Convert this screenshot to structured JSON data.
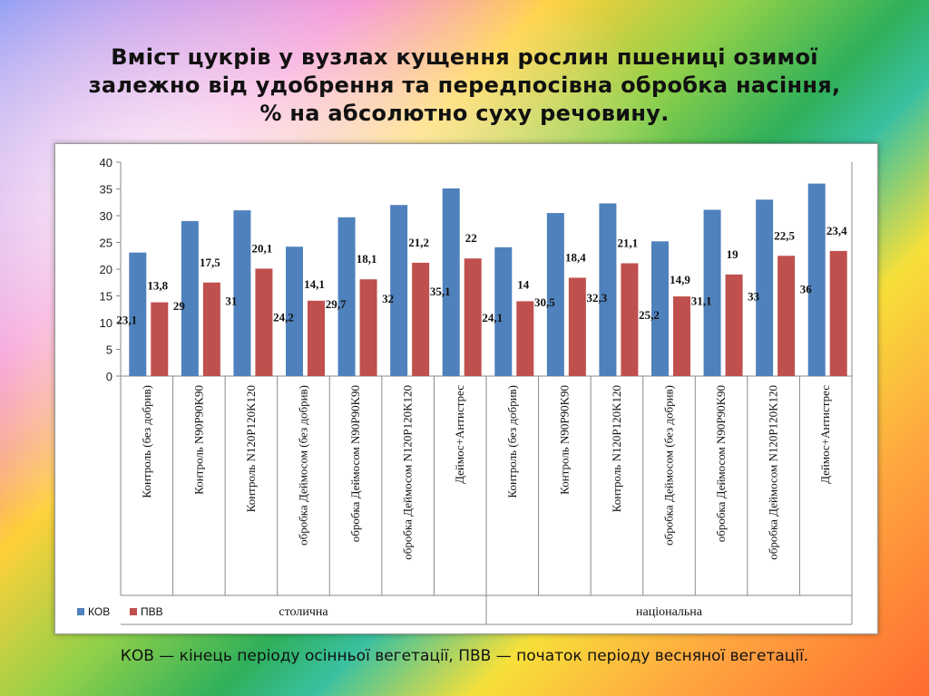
{
  "title_lines": [
    "Вміст цукрів у вузлах кущення рослин пшениці озимої",
    "залежно від удобрення та передпосівна обробка насіння,",
    "% на абсолютно суху речовину."
  ],
  "footnote": "КОВ — кінець періоду осінньої вегетації, ПВВ — початок періоду весняної вегетації.",
  "chart_data": {
    "type": "bar",
    "ylim": [
      0,
      40
    ],
    "yticks": [
      "0",
      "5",
      "10",
      "15",
      "20",
      "25",
      "30",
      "35",
      "40"
    ],
    "grid": false,
    "legend": "bottom-left",
    "categories": [
      "Контроль (без добрив)",
      "Контроль N90P90K90",
      "Контроль N120P120K120",
      "обробка Деймосом (без добрив)",
      "обробка Деймосом  N90P90K90",
      "обробка Деймосом  N120P120K120",
      "Деймос+Антистрес",
      "Контроль (без добрив)",
      "Контроль N90P90K90",
      "Контроль N120P120K120",
      "обробка Деймосом (без добрив)",
      "обробка Деймосом  N90P90K90",
      "обробка Деймосом  N120P120K120",
      "Деймос+Антистрес"
    ],
    "groups": [
      {
        "label": "столична",
        "count": 7
      },
      {
        "label": "національна",
        "count": 7
      }
    ],
    "series": [
      {
        "name": "КОВ",
        "color": "#4f81bd",
        "values": [
          23.1,
          29,
          31,
          24.2,
          29.7,
          32,
          35.1,
          24.1,
          30.5,
          32.3,
          25.2,
          31.1,
          33,
          36
        ],
        "labels": [
          "23,1",
          "29",
          "31",
          "24,2",
          "29,7",
          "32",
          "35,1",
          "24,1",
          "30,5",
          "32,3",
          "25,2",
          "31,1",
          "33",
          "36"
        ]
      },
      {
        "name": "ПВВ",
        "color": "#c0504d",
        "values": [
          13.8,
          17.5,
          20.1,
          14.1,
          18.1,
          21.2,
          22,
          14,
          18.4,
          21.1,
          14.9,
          19,
          22.5,
          23.4
        ],
        "labels": [
          "13,8",
          "17,5",
          "20,1",
          "14,1",
          "18,1",
          "21,2",
          "22",
          "14",
          "18,4",
          "21,1",
          "14,9",
          "19",
          "22,5",
          "23,4"
        ]
      }
    ]
  }
}
